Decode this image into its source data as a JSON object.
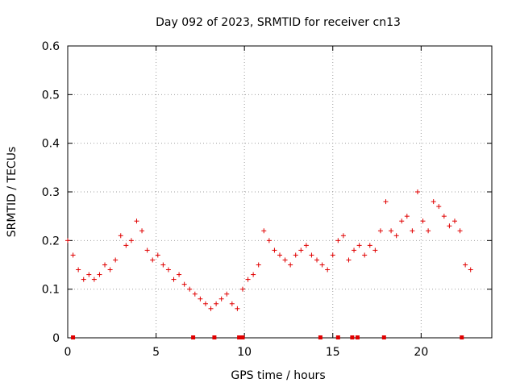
{
  "chart_data": {
    "type": "scatter",
    "title": "Day 092 of 2023, SRMTID for receiver cn13",
    "xlabel": "GPS time / hours",
    "ylabel": "SRMTID / TECUs",
    "xlim": [
      0,
      24
    ],
    "ylim": [
      0,
      0.6
    ],
    "x_ticks": [
      "0",
      "5",
      "10",
      "15",
      "20"
    ],
    "y_ticks": [
      "0",
      "0.1",
      "0.2",
      "0.3",
      "0.4",
      "0.5",
      "0.6"
    ],
    "grid": true,
    "marker": "+",
    "marker_color": "#e00000",
    "series": [
      {
        "name": "SRMTID",
        "x": [
          0.0,
          0.3,
          0.6,
          0.9,
          1.2,
          1.5,
          1.8,
          2.1,
          2.4,
          2.7,
          3.0,
          3.3,
          3.6,
          3.9,
          4.2,
          4.5,
          4.8,
          5.1,
          5.4,
          5.7,
          6.0,
          6.3,
          6.6,
          6.9,
          7.2,
          7.5,
          7.8,
          8.1,
          8.4,
          8.7,
          9.0,
          9.3,
          9.6,
          9.9,
          10.2,
          10.5,
          10.8,
          11.1,
          11.4,
          11.7,
          12.0,
          12.3,
          12.6,
          12.9,
          13.2,
          13.5,
          13.8,
          14.1,
          14.4,
          14.7,
          15.0,
          15.3,
          15.6,
          15.9,
          16.2,
          16.5,
          16.8,
          17.1,
          17.4,
          17.7,
          18.0,
          18.3,
          18.6,
          18.9,
          19.2,
          19.5,
          19.8,
          20.1,
          20.4,
          20.7,
          21.0,
          21.3,
          21.6,
          21.9,
          22.2,
          22.5,
          22.8
        ],
        "values": [
          0.2,
          0.17,
          0.14,
          0.12,
          0.13,
          0.12,
          0.13,
          0.15,
          0.14,
          0.16,
          0.21,
          0.19,
          0.2,
          0.24,
          0.22,
          0.18,
          0.16,
          0.17,
          0.15,
          0.14,
          0.12,
          0.13,
          0.11,
          0.1,
          0.09,
          0.08,
          0.07,
          0.06,
          0.07,
          0.08,
          0.09,
          0.07,
          0.06,
          0.1,
          0.12,
          0.13,
          0.15,
          0.22,
          0.2,
          0.18,
          0.17,
          0.16,
          0.15,
          0.17,
          0.18,
          0.19,
          0.17,
          0.16,
          0.15,
          0.14,
          0.17,
          0.2,
          0.21,
          0.16,
          0.18,
          0.19,
          0.17,
          0.19,
          0.18,
          0.22,
          0.28,
          0.22,
          0.21,
          0.24,
          0.25,
          0.22,
          0.3,
          0.24,
          0.22,
          0.28,
          0.27,
          0.25,
          0.23,
          0.24,
          0.22,
          0.15,
          0.14
        ]
      }
    ],
    "bottom_markers_x": [
      0.3,
      7.1,
      8.3,
      9.7,
      9.9,
      14.3,
      15.3,
      16.1,
      16.4,
      17.9,
      22.3
    ]
  }
}
